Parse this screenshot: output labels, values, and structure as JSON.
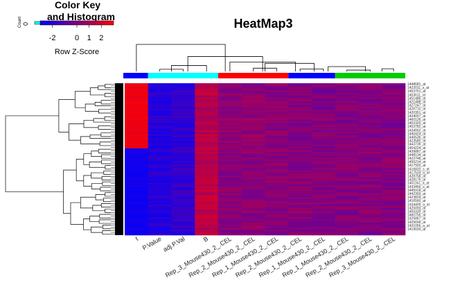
{
  "chart_data": {
    "type": "heatmap",
    "title": "HeatMap3",
    "color_key": {
      "title_line1": "Color Key",
      "title_line2": "and Histogram",
      "xlabel": "Row Z-Score",
      "ylabel": "Count",
      "y_tick": "0",
      "ticks": [
        "-2",
        "0",
        "1",
        "2"
      ],
      "tick_values": [
        -2,
        0,
        1,
        2
      ],
      "range": [
        -3,
        3
      ],
      "low_color": "#0000ff",
      "high_color": "#ff0000"
    },
    "columns": [
      "t",
      "P.Value",
      "adj.P.Val",
      "B",
      "Rep_3_Mouse430_2_.CEL",
      "Rep_2_Mouse430_2_.CEL",
      "Rep_1_Mouse430_2_.CEL",
      "Rep_2_Mouse430_2_.CEL",
      "Rep_1_Mouse430_2_.CEL",
      "Rep_1_Mouse430_2_.CEL",
      "Rep_2_Mouse430_2_.CEL",
      "Rep_3_Mouse430_2_.CEL"
    ],
    "column_groups": [
      {
        "color": "#0000ff",
        "columns": [
          0
        ]
      },
      {
        "color": "#00ffff",
        "columns": [
          1,
          2,
          3
        ]
      },
      {
        "color": "#ff0000",
        "columns": [
          4,
          5,
          6
        ]
      },
      {
        "color": "#0000ff",
        "columns": [
          7,
          8
        ]
      },
      {
        "color": "#00cc00",
        "columns": [
          9,
          10,
          11
        ]
      }
    ],
    "row_labels": [
      "1448681_at",
      "1422011_s_at",
      "1453761_at",
      "1453611_at",
      "1451486_at",
      "1421488_at",
      "1427247_at",
      "1426710_at",
      "1420351_at",
      "1434057_at",
      "1460126_at",
      "1452320_at",
      "1453782_at",
      "1434062_at",
      "1440424_at",
      "1446536_at",
      "1423580_at",
      "1443739_at",
      "1454224_at",
      "1439887_at",
      "1448134_at",
      "1422748_at",
      "1455214_at",
      "1417920_at",
      "1416820_s_at",
      "1417533_a_at",
      "1428758_at",
      "1428176_at",
      "1451161_a_at",
      "1433456_s_at",
      "1445918_at",
      "1442393_at",
      "1423829_at",
      "1416560_at",
      "1434499_a_at",
      "1425093_at",
      "1450330_at",
      "1460756_at",
      "1425867_at",
      "1425699_at",
      "1431056_a_at",
      "1419033_at"
    ],
    "n_rows": 84,
    "rows_z": {
      "upper_block_rows": 36,
      "t": [
        2.6,
        -2.6
      ],
      "P.Value": [
        -2.2,
        -2.2
      ],
      "adj.P.Val": [
        -1.9,
        -1.9
      ],
      "B": [
        1.3,
        1.4
      ],
      "Rep_3_Mouse430_2_.CEL": [
        0.3,
        0.2
      ],
      "Rep_2_Mouse430_2_.CEL": [
        0.3,
        0.2
      ],
      "Rep_1_Mouse430_2_.CEL": [
        0.2,
        0.2
      ],
      "Rep_2_Mouse430_2_.CEL#2": [
        0.1,
        0.2
      ],
      "Rep_1_Mouse430_2_.CEL#2": [
        0.0,
        0.1
      ],
      "Rep_1_Mouse430_2_.CEL#3": [
        0.1,
        0.1
      ],
      "Rep_2_Mouse430_2_.CEL#3": [
        0.0,
        0.1
      ],
      "Rep_3_Mouse430_2_.CEL#3": [
        0.0,
        0.1
      ]
    },
    "column_dendrogram": [
      {
        "a": 1,
        "b": 2,
        "h": 0.08
      },
      {
        "a": 5,
        "b": 6,
        "h": 0.12
      },
      {
        "a": 9,
        "b": 10,
        "h": 0.05
      },
      {
        "a": 10.5,
        "b": 11,
        "h": 0.1
      },
      {
        "a": 7,
        "b": 8,
        "h": 0.09
      },
      {
        "a": 1.5,
        "b": 3,
        "h": 0.22
      },
      {
        "a": 8.2,
        "b": 9.8,
        "h": 0.18
      },
      {
        "a": 5.5,
        "b": 7.6,
        "h": 0.3
      },
      {
        "a": 4,
        "b": 6.8,
        "h": 0.35
      },
      {
        "a": 2.2,
        "b": 5.4,
        "h": 0.55
      },
      {
        "a": 0,
        "b": 3.8,
        "h": 1.0
      }
    ]
  }
}
